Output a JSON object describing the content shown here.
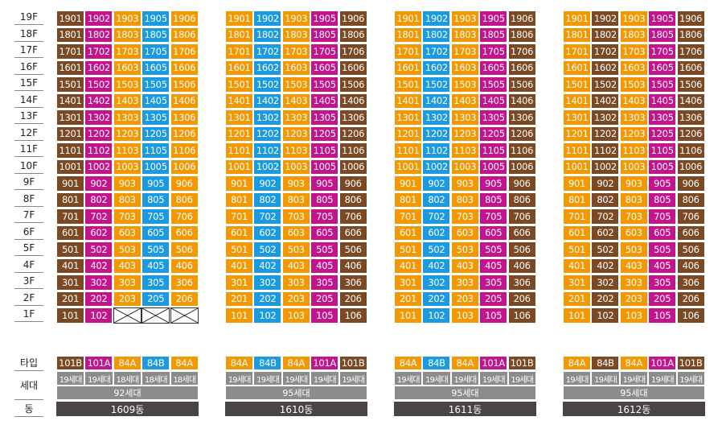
{
  "colors": {
    "brown": "#7b4a24",
    "magenta": "#c4148c",
    "orange": "#f39800",
    "blue": "#1a9ae0"
  },
  "floors": [
    "19F",
    "18F",
    "17F",
    "16F",
    "15F",
    "14F",
    "13F",
    "12F",
    "11F",
    "10F",
    "9F",
    "8F",
    "7F",
    "6F",
    "5F",
    "4F",
    "3F",
    "2F",
    "1F"
  ],
  "floor_numbers": [
    19,
    18,
    17,
    16,
    15,
    14,
    13,
    12,
    11,
    10,
    9,
    8,
    7,
    6,
    5,
    4,
    3,
    2,
    1
  ],
  "row_labels": {
    "type": "타입",
    "households": "세대",
    "building": "동"
  },
  "buildings": [
    {
      "units": [
        "01",
        "02",
        "03",
        "05",
        "06"
      ],
      "column_colors": [
        "brown",
        "magenta",
        "orange",
        "blue",
        "orange"
      ],
      "types": [
        "101B",
        "101A",
        "84A",
        "84B",
        "84A"
      ],
      "households": [
        "19세대",
        "19세대",
        "18세대",
        "18세대",
        "18세대"
      ],
      "total": "92세대",
      "name": "1609동",
      "first_floor_missing": [
        2,
        3,
        4
      ]
    },
    {
      "units": [
        "01",
        "02",
        "03",
        "05",
        "06"
      ],
      "column_colors": [
        "orange",
        "blue",
        "orange",
        "magenta",
        "brown"
      ],
      "types": [
        "84A",
        "84B",
        "84A",
        "101A",
        "101B"
      ],
      "households": [
        "19세대",
        "19세대",
        "19세대",
        "19세대",
        "19세대"
      ],
      "total": "95세대",
      "name": "1610동",
      "first_floor_missing": []
    },
    {
      "units": [
        "01",
        "02",
        "03",
        "05",
        "06"
      ],
      "column_colors": [
        "orange",
        "blue",
        "orange",
        "magenta",
        "brown"
      ],
      "types": [
        "84A",
        "84B",
        "84A",
        "101A",
        "101B"
      ],
      "households": [
        "19세대",
        "19세대",
        "19세대",
        "19세대",
        "19세대"
      ],
      "total": "95세대",
      "name": "1611동",
      "first_floor_missing": []
    },
    {
      "units": [
        "01",
        "02",
        "03",
        "05",
        "06"
      ],
      "column_colors": [
        "orange",
        "brown",
        "orange",
        "magenta",
        "brown"
      ],
      "types": [
        "84A",
        "84B",
        "84A",
        "101A",
        "101B"
      ],
      "households": [
        "19세대",
        "19세대",
        "19세대",
        "19세대",
        "19세대"
      ],
      "total": "95세대",
      "name": "1612동",
      "first_floor_missing": []
    }
  ]
}
